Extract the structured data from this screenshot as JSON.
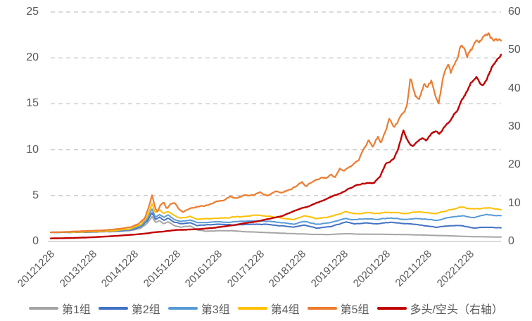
{
  "chart_data": {
    "type": "line",
    "title": "",
    "grid": "dashed-horizontal",
    "legend_position": "bottom",
    "x_ticks": [
      "20121228",
      "20131228",
      "20141228",
      "20151228",
      "20161228",
      "20171228",
      "20181228",
      "20191228",
      "20201228",
      "20211228",
      "20221228"
    ],
    "y_left": {
      "min": 0,
      "max": 25,
      "ticks": [
        "25",
        "20",
        "15",
        "10",
        "5",
        "0"
      ]
    },
    "y_right": {
      "min": 0,
      "max": 60,
      "ticks": [
        "60",
        "50",
        "40",
        "30",
        "20",
        "10",
        "0"
      ]
    },
    "t_domain": [
      0,
      10.75
    ],
    "axis_color": "#595959",
    "grid_color": "#cfcfcf",
    "baseline_color": "#d6d6d6",
    "series": [
      {
        "name": "第1组",
        "color": "#a5a5a5",
        "axis": "left",
        "width": 2,
        "noise": 0.015,
        "points": [
          [
            0,
            1.0
          ],
          [
            0.5,
            1.0
          ],
          [
            1.0,
            1.02
          ],
          [
            1.5,
            1.07
          ],
          [
            1.9,
            1.17
          ],
          [
            2.15,
            1.45
          ],
          [
            2.3,
            1.95
          ],
          [
            2.42,
            2.7
          ],
          [
            2.5,
            2.1
          ],
          [
            2.6,
            2.25
          ],
          [
            2.7,
            1.95
          ],
          [
            2.8,
            2.15
          ],
          [
            2.95,
            1.75
          ],
          [
            3.1,
            1.55
          ],
          [
            3.33,
            1.7
          ],
          [
            3.5,
            1.25
          ],
          [
            3.7,
            1.12
          ],
          [
            4.0,
            1.17
          ],
          [
            4.34,
            1.15
          ],
          [
            4.7,
            1.05
          ],
          [
            5.0,
            1.0
          ],
          [
            5.4,
            0.92
          ],
          [
            5.8,
            0.85
          ],
          [
            6.1,
            0.8
          ],
          [
            6.35,
            0.77
          ],
          [
            6.7,
            0.76
          ],
          [
            7.05,
            0.85
          ],
          [
            7.3,
            0.8
          ],
          [
            7.7,
            0.78
          ],
          [
            8.1,
            0.78
          ],
          [
            8.5,
            0.74
          ],
          [
            8.9,
            0.7
          ],
          [
            9.3,
            0.64
          ],
          [
            9.7,
            0.58
          ],
          [
            10.1,
            0.53
          ],
          [
            10.75,
            0.48
          ]
        ]
      },
      {
        "name": "第2组",
        "color": "#4472c4",
        "axis": "left",
        "width": 2,
        "noise": 0.015,
        "points": [
          [
            0,
            1.0
          ],
          [
            0.5,
            1.0
          ],
          [
            1.0,
            1.04
          ],
          [
            1.5,
            1.1
          ],
          [
            1.9,
            1.25
          ],
          [
            2.15,
            1.6
          ],
          [
            2.3,
            2.2
          ],
          [
            2.42,
            3.15
          ],
          [
            2.5,
            2.4
          ],
          [
            2.6,
            2.65
          ],
          [
            2.7,
            2.3
          ],
          [
            2.8,
            2.55
          ],
          [
            2.95,
            2.1
          ],
          [
            3.1,
            1.9
          ],
          [
            3.33,
            2.05
          ],
          [
            3.5,
            1.75
          ],
          [
            3.7,
            1.8
          ],
          [
            4.0,
            1.85
          ],
          [
            4.34,
            1.8
          ],
          [
            4.7,
            1.85
          ],
          [
            5.0,
            1.9
          ],
          [
            5.4,
            1.75
          ],
          [
            5.8,
            1.55
          ],
          [
            6.05,
            1.8
          ],
          [
            6.35,
            1.45
          ],
          [
            6.7,
            1.65
          ],
          [
            7.05,
            2.1
          ],
          [
            7.25,
            1.9
          ],
          [
            7.5,
            2.0
          ],
          [
            7.8,
            1.95
          ],
          [
            8.1,
            2.1
          ],
          [
            8.45,
            1.95
          ],
          [
            8.8,
            1.8
          ],
          [
            9.2,
            1.55
          ],
          [
            9.5,
            1.7
          ],
          [
            9.8,
            1.72
          ],
          [
            10.1,
            1.45
          ],
          [
            10.4,
            1.55
          ],
          [
            10.75,
            1.5
          ]
        ]
      },
      {
        "name": "第3组",
        "color": "#5b9bd5",
        "axis": "left",
        "width": 2,
        "noise": 0.015,
        "points": [
          [
            0,
            1.0
          ],
          [
            0.5,
            1.01
          ],
          [
            1.0,
            1.06
          ],
          [
            1.5,
            1.13
          ],
          [
            1.9,
            1.3
          ],
          [
            2.15,
            1.7
          ],
          [
            2.3,
            2.4
          ],
          [
            2.42,
            3.55
          ],
          [
            2.5,
            2.7
          ],
          [
            2.6,
            2.95
          ],
          [
            2.7,
            2.6
          ],
          [
            2.8,
            2.85
          ],
          [
            2.95,
            2.4
          ],
          [
            3.1,
            2.2
          ],
          [
            3.33,
            2.35
          ],
          [
            3.5,
            2.05
          ],
          [
            3.7,
            2.1
          ],
          [
            4.0,
            2.15
          ],
          [
            4.34,
            2.1
          ],
          [
            4.7,
            2.2
          ],
          [
            5.0,
            2.25
          ],
          [
            5.4,
            2.1
          ],
          [
            5.8,
            1.9
          ],
          [
            6.05,
            2.2
          ],
          [
            6.35,
            1.85
          ],
          [
            6.7,
            2.1
          ],
          [
            7.05,
            2.55
          ],
          [
            7.25,
            2.35
          ],
          [
            7.5,
            2.5
          ],
          [
            7.8,
            2.4
          ],
          [
            8.1,
            2.55
          ],
          [
            8.45,
            2.4
          ],
          [
            8.8,
            2.5
          ],
          [
            9.2,
            2.3
          ],
          [
            9.5,
            2.6
          ],
          [
            9.8,
            2.75
          ],
          [
            10.1,
            2.6
          ],
          [
            10.4,
            2.9
          ],
          [
            10.75,
            2.8
          ]
        ]
      },
      {
        "name": "第4组",
        "color": "#ffc000",
        "axis": "left",
        "width": 2,
        "noise": 0.015,
        "points": [
          [
            0,
            1.0
          ],
          [
            0.5,
            1.02
          ],
          [
            1.0,
            1.08
          ],
          [
            1.5,
            1.17
          ],
          [
            1.9,
            1.38
          ],
          [
            2.15,
            1.85
          ],
          [
            2.3,
            2.7
          ],
          [
            2.42,
            4.1
          ],
          [
            2.5,
            3.1
          ],
          [
            2.6,
            3.4
          ],
          [
            2.7,
            3.0
          ],
          [
            2.8,
            3.25
          ],
          [
            2.95,
            2.8
          ],
          [
            3.1,
            2.55
          ],
          [
            3.33,
            2.7
          ],
          [
            3.5,
            2.4
          ],
          [
            3.7,
            2.45
          ],
          [
            4.0,
            2.55
          ],
          [
            4.34,
            2.65
          ],
          [
            4.7,
            2.75
          ],
          [
            5.0,
            2.85
          ],
          [
            5.4,
            2.65
          ],
          [
            5.8,
            2.4
          ],
          [
            6.05,
            2.8
          ],
          [
            6.35,
            2.45
          ],
          [
            6.7,
            2.7
          ],
          [
            7.05,
            3.25
          ],
          [
            7.25,
            3.0
          ],
          [
            7.5,
            3.15
          ],
          [
            7.8,
            3.05
          ],
          [
            8.1,
            3.2
          ],
          [
            8.45,
            3.05
          ],
          [
            8.8,
            3.2
          ],
          [
            9.2,
            3.0
          ],
          [
            9.5,
            3.45
          ],
          [
            9.8,
            3.75
          ],
          [
            10.1,
            3.5
          ],
          [
            10.4,
            3.65
          ],
          [
            10.75,
            3.45
          ]
        ]
      },
      {
        "name": "第5组",
        "color": "#ed7d31",
        "axis": "left",
        "width": 2.2,
        "noise": 0.013,
        "points": [
          [
            0,
            1.0
          ],
          [
            0.4,
            1.05
          ],
          [
            0.8,
            1.12
          ],
          [
            1.2,
            1.2
          ],
          [
            1.6,
            1.35
          ],
          [
            1.9,
            1.55
          ],
          [
            2.1,
            1.9
          ],
          [
            2.25,
            2.6
          ],
          [
            2.35,
            3.9
          ],
          [
            2.42,
            5.05
          ],
          [
            2.5,
            3.6
          ],
          [
            2.55,
            3.25
          ],
          [
            2.62,
            4.0
          ],
          [
            2.7,
            4.3
          ],
          [
            2.77,
            3.6
          ],
          [
            2.87,
            4.15
          ],
          [
            2.97,
            4.2
          ],
          [
            3.07,
            3.5
          ],
          [
            3.15,
            3.2
          ],
          [
            3.3,
            3.6
          ],
          [
            3.61,
            3.85
          ],
          [
            3.8,
            4.0
          ],
          [
            3.95,
            4.3
          ],
          [
            4.12,
            4.45
          ],
          [
            4.29,
            4.85
          ],
          [
            4.45,
            4.7
          ],
          [
            4.62,
            5.05
          ],
          [
            4.84,
            5.0
          ],
          [
            5.0,
            5.35
          ],
          [
            5.17,
            5.05
          ],
          [
            5.39,
            5.45
          ],
          [
            5.56,
            5.4
          ],
          [
            5.73,
            5.75
          ],
          [
            5.85,
            6.0
          ],
          [
            6.0,
            6.45
          ],
          [
            6.1,
            6.05
          ],
          [
            6.3,
            6.6
          ],
          [
            6.45,
            6.95
          ],
          [
            6.57,
            6.9
          ],
          [
            6.7,
            7.3
          ],
          [
            6.78,
            6.9
          ],
          [
            6.9,
            7.9
          ],
          [
            7.0,
            7.5
          ],
          [
            7.15,
            8.2
          ],
          [
            7.36,
            8.9
          ],
          [
            7.48,
            10.05
          ],
          [
            7.6,
            10.9
          ],
          [
            7.68,
            10.3
          ],
          [
            7.81,
            11.5
          ],
          [
            7.88,
            10.9
          ],
          [
            8.03,
            12.5
          ],
          [
            8.08,
            13.3
          ],
          [
            8.2,
            12.4
          ],
          [
            8.3,
            13.2
          ],
          [
            8.42,
            13.9
          ],
          [
            8.5,
            14.8
          ],
          [
            8.59,
            18.0
          ],
          [
            8.7,
            15.9
          ],
          [
            8.79,
            15.6
          ],
          [
            8.92,
            17.3
          ],
          [
            9.0,
            16.8
          ],
          [
            9.09,
            17.6
          ],
          [
            9.18,
            16.2
          ],
          [
            9.26,
            15.0
          ],
          [
            9.35,
            17.5
          ],
          [
            9.41,
            18.8
          ],
          [
            9.5,
            19.4
          ],
          [
            9.55,
            18.6
          ],
          [
            9.62,
            19.2
          ],
          [
            9.71,
            20.0
          ],
          [
            9.76,
            20.9
          ],
          [
            9.88,
            21.2
          ],
          [
            9.94,
            20.4
          ],
          [
            10.05,
            21.1
          ],
          [
            10.15,
            21.4
          ],
          [
            10.25,
            21.9
          ],
          [
            10.35,
            22.5
          ],
          [
            10.47,
            22.9
          ],
          [
            10.55,
            22.1
          ],
          [
            10.62,
            22.4
          ],
          [
            10.68,
            21.9
          ],
          [
            10.75,
            21.8
          ]
        ]
      },
      {
        "name": "多头/空头（右轴）",
        "color": "#c00000",
        "axis": "right",
        "width": 2.4,
        "noise": 0.008,
        "points": [
          [
            0,
            0.8
          ],
          [
            0.5,
            0.9
          ],
          [
            1.0,
            1.1
          ],
          [
            1.5,
            1.4
          ],
          [
            2.0,
            1.8
          ],
          [
            2.3,
            2.1
          ],
          [
            2.45,
            2.4
          ],
          [
            2.7,
            2.6
          ],
          [
            3.0,
            3.0
          ],
          [
            3.3,
            3.1
          ],
          [
            3.6,
            3.3
          ],
          [
            3.9,
            3.6
          ],
          [
            4.2,
            4.0
          ],
          [
            4.5,
            4.5
          ],
          [
            4.9,
            5.2
          ],
          [
            5.2,
            5.9
          ],
          [
            5.5,
            6.6
          ],
          [
            5.75,
            7.6
          ],
          [
            6.0,
            8.8
          ],
          [
            6.15,
            9.3
          ],
          [
            6.3,
            9.9
          ],
          [
            6.45,
            10.5
          ],
          [
            6.6,
            11.2
          ],
          [
            6.75,
            11.9
          ],
          [
            6.9,
            12.6
          ],
          [
            7.05,
            13.4
          ],
          [
            7.15,
            14.0
          ],
          [
            7.3,
            14.6
          ],
          [
            7.45,
            15.0
          ],
          [
            7.6,
            15.2
          ],
          [
            7.72,
            15.3
          ],
          [
            7.87,
            17.1
          ],
          [
            8.0,
            20.3
          ],
          [
            8.1,
            21.0
          ],
          [
            8.2,
            22.0
          ],
          [
            8.3,
            24.3
          ],
          [
            8.42,
            29.1
          ],
          [
            8.5,
            26.8
          ],
          [
            8.6,
            25.2
          ],
          [
            8.66,
            24.9
          ],
          [
            8.76,
            26.3
          ],
          [
            8.87,
            26.9
          ],
          [
            8.97,
            26.4
          ],
          [
            9.09,
            28.2
          ],
          [
            9.2,
            28.7
          ],
          [
            9.28,
            28.0
          ],
          [
            9.4,
            30.0
          ],
          [
            9.5,
            31.2
          ],
          [
            9.62,
            33.3
          ],
          [
            9.72,
            34.8
          ],
          [
            9.82,
            36.8
          ],
          [
            9.92,
            38.8
          ],
          [
            10.02,
            41.0
          ],
          [
            10.12,
            42.8
          ],
          [
            10.17,
            43.3
          ],
          [
            10.25,
            41.6
          ],
          [
            10.33,
            41.0
          ],
          [
            10.42,
            43.0
          ],
          [
            10.5,
            44.5
          ],
          [
            10.58,
            46.2
          ],
          [
            10.67,
            47.6
          ],
          [
            10.75,
            49.2
          ]
        ]
      }
    ],
    "legend": [
      "第1组",
      "第2组",
      "第3组",
      "第4组",
      "第5组",
      "多头/空头（右轴）"
    ]
  }
}
